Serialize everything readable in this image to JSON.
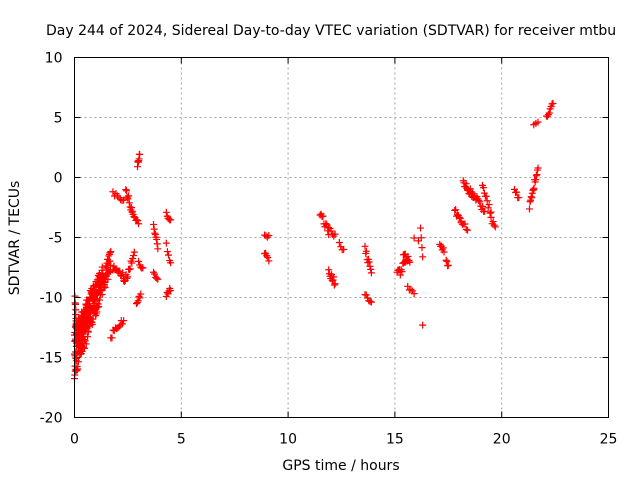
{
  "chart_data": {
    "type": "scatter",
    "title": "Day 244 of 2024, Sidereal Day-to-day VTEC variation (SDTVAR) for receiver mtbu",
    "xlabel": "GPS time / hours",
    "ylabel": "SDTVAR / TECUs",
    "xlim": [
      0,
      25
    ],
    "ylim": [
      -20,
      10
    ],
    "x_ticks": [
      0,
      5,
      10,
      15,
      20,
      25
    ],
    "y_ticks": [
      -20,
      -15,
      -10,
      -5,
      0,
      5,
      10
    ],
    "x_tick_labels": [
      "0",
      "5",
      "10",
      "15",
      "20",
      "25"
    ],
    "y_tick_labels": [
      "-20",
      "-15",
      "-10",
      "-5",
      "0",
      "5",
      "10"
    ],
    "grid": true,
    "marker": "plus",
    "marker_color": "#ff0000",
    "segments": [
      {
        "x": [
          0.0,
          1.7
        ],
        "y": [
          -15.8,
          -6.8
        ],
        "spread": 1.0,
        "n": 140
      },
      {
        "x": [
          0.0,
          1.3
        ],
        "y": [
          -14.2,
          -8.0
        ],
        "spread": 0.8,
        "n": 90
      },
      {
        "x": [
          0.0,
          0.9
        ],
        "y": [
          -13.2,
          -9.5
        ],
        "spread": 0.7,
        "n": 60
      },
      {
        "x": [
          0.02,
          0.12
        ],
        "y": [
          -10.0,
          -13.5
        ],
        "spread": 0.4,
        "n": 14
      },
      {
        "x": [
          1.7,
          2.3
        ],
        "y": [
          -13.2,
          -12.0
        ],
        "spread": 0.3,
        "n": 12
      },
      {
        "x": [
          1.8,
          2.3
        ],
        "y": [
          -7.6,
          -8.3
        ],
        "spread": 0.3,
        "n": 12
      },
      {
        "x": [
          1.8,
          2.3
        ],
        "y": [
          -1.3,
          -2.0
        ],
        "spread": 0.2,
        "n": 8
      },
      {
        "x": [
          2.3,
          2.8
        ],
        "y": [
          -9.0,
          -6.3
        ],
        "spread": 0.4,
        "n": 14
      },
      {
        "x": [
          2.4,
          2.7
        ],
        "y": [
          -1.0,
          -2.8
        ],
        "spread": 0.3,
        "n": 10
      },
      {
        "x": [
          2.7,
          3.0
        ],
        "y": [
          -3.0,
          -4.0
        ],
        "spread": 0.3,
        "n": 8
      },
      {
        "x": [
          2.95,
          3.05
        ],
        "y": [
          1.0,
          2.0
        ],
        "spread": 0.2,
        "n": 8
      },
      {
        "x": [
          2.9,
          3.1
        ],
        "y": [
          -10.5,
          -9.8
        ],
        "spread": 0.2,
        "n": 6
      },
      {
        "x": [
          3.0,
          3.2
        ],
        "y": [
          -7.0,
          -7.7
        ],
        "spread": 0.2,
        "n": 5
      },
      {
        "x": [
          3.7,
          3.9
        ],
        "y": [
          -4.0,
          -5.8
        ],
        "spread": 0.2,
        "n": 8
      },
      {
        "x": [
          3.7,
          3.9
        ],
        "y": [
          -8.0,
          -8.5
        ],
        "spread": 0.2,
        "n": 5
      },
      {
        "x": [
          4.3,
          4.5
        ],
        "y": [
          -3.0,
          -3.5
        ],
        "spread": 0.2,
        "n": 6
      },
      {
        "x": [
          4.3,
          4.5
        ],
        "y": [
          -9.8,
          -9.3
        ],
        "spread": 0.2,
        "n": 6
      },
      {
        "x": [
          4.3,
          4.5
        ],
        "y": [
          -5.6,
          -7.3
        ],
        "spread": 0.2,
        "n": 5
      },
      {
        "x": [
          8.9,
          9.1
        ],
        "y": [
          -4.8,
          -5.0
        ],
        "spread": 0.2,
        "n": 4
      },
      {
        "x": [
          8.9,
          9.1
        ],
        "y": [
          -6.2,
          -6.8
        ],
        "spread": 0.2,
        "n": 5
      },
      {
        "x": [
          11.5,
          11.9
        ],
        "y": [
          -3.0,
          -4.5
        ],
        "spread": 0.3,
        "n": 10
      },
      {
        "x": [
          11.9,
          12.2
        ],
        "y": [
          -4.3,
          -4.8
        ],
        "spread": 0.2,
        "n": 6
      },
      {
        "x": [
          11.9,
          12.2
        ],
        "y": [
          -7.8,
          -8.8
        ],
        "spread": 0.3,
        "n": 10
      },
      {
        "x": [
          12.4,
          12.6
        ],
        "y": [
          -5.6,
          -6.0
        ],
        "spread": 0.2,
        "n": 4
      },
      {
        "x": [
          13.6,
          13.9
        ],
        "y": [
          -6.0,
          -8.0
        ],
        "spread": 0.3,
        "n": 10
      },
      {
        "x": [
          13.6,
          13.9
        ],
        "y": [
          -9.8,
          -10.4
        ],
        "spread": 0.2,
        "n": 6
      },
      {
        "x": [
          15.1,
          15.6
        ],
        "y": [
          -8.2,
          -6.8
        ],
        "spread": 0.4,
        "n": 14
      },
      {
        "x": [
          15.4,
          15.7
        ],
        "y": [
          -6.4,
          -7.0
        ],
        "spread": 0.3,
        "n": 8
      },
      {
        "x": [
          15.6,
          15.9
        ],
        "y": [
          -9.0,
          -9.8
        ],
        "spread": 0.2,
        "n": 5
      },
      {
        "x": [
          15.9,
          16.1
        ],
        "y": [
          -5.0,
          -5.2
        ],
        "spread": 0.1,
        "n": 2
      },
      {
        "x": [
          16.2,
          16.3
        ],
        "y": [
          -4.3,
          -6.5
        ],
        "spread": 0.2,
        "n": 4
      },
      {
        "x": [
          16.3,
          16.3
        ],
        "y": [
          -12.3,
          -12.3
        ],
        "spread": 0.0,
        "n": 1
      },
      {
        "x": [
          17.1,
          17.3
        ],
        "y": [
          -5.5,
          -6.2
        ],
        "spread": 0.2,
        "n": 6
      },
      {
        "x": [
          17.4,
          17.5
        ],
        "y": [
          -7.0,
          -7.5
        ],
        "spread": 0.2,
        "n": 4
      },
      {
        "x": [
          17.8,
          18.1
        ],
        "y": [
          -2.8,
          -3.5
        ],
        "spread": 0.3,
        "n": 8
      },
      {
        "x": [
          18.1,
          18.4
        ],
        "y": [
          -3.6,
          -4.3
        ],
        "spread": 0.2,
        "n": 6
      },
      {
        "x": [
          18.2,
          18.7
        ],
        "y": [
          -0.5,
          -1.5
        ],
        "spread": 0.3,
        "n": 16
      },
      {
        "x": [
          18.7,
          19.2
        ],
        "y": [
          -1.5,
          -2.8
        ],
        "spread": 0.3,
        "n": 12
      },
      {
        "x": [
          19.1,
          19.5
        ],
        "y": [
          -0.8,
          -3.0
        ],
        "spread": 0.3,
        "n": 10
      },
      {
        "x": [
          19.5,
          19.7
        ],
        "y": [
          -3.5,
          -4.2
        ],
        "spread": 0.2,
        "n": 5
      },
      {
        "x": [
          20.6,
          20.8
        ],
        "y": [
          -1.0,
          -1.8
        ],
        "spread": 0.2,
        "n": 5
      },
      {
        "x": [
          21.3,
          21.7
        ],
        "y": [
          -2.5,
          1.0
        ],
        "spread": 0.3,
        "n": 16
      },
      {
        "x": [
          21.5,
          21.7
        ],
        "y": [
          4.4,
          4.7
        ],
        "spread": 0.1,
        "n": 3
      },
      {
        "x": [
          22.1,
          22.4
        ],
        "y": [
          5.0,
          6.3
        ],
        "spread": 0.2,
        "n": 8
      }
    ]
  },
  "colors": {
    "marker": "#ff0000",
    "grid": "#a0a0a0",
    "axis": "#000000",
    "background": "#ffffff"
  }
}
